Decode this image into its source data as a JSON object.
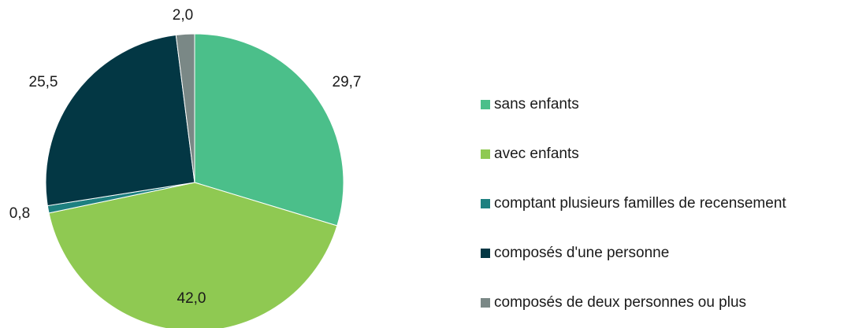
{
  "chart_data": {
    "type": "pie",
    "categories": [
      "sans enfants",
      "avec enfants",
      "comptant plusieurs familles de recensement",
      "composés d'une personne",
      "composés de deux personnes ou plus"
    ],
    "values": [
      29.7,
      42.0,
      0.8,
      25.5,
      2.0
    ],
    "value_labels": [
      "29,7",
      "42,0",
      "0,8",
      "25,5",
      "2,0"
    ],
    "colors": [
      "#4bbf8a",
      "#8fc952",
      "#1e8080",
      "#033744",
      "#7a8886"
    ],
    "legend": "right"
  }
}
